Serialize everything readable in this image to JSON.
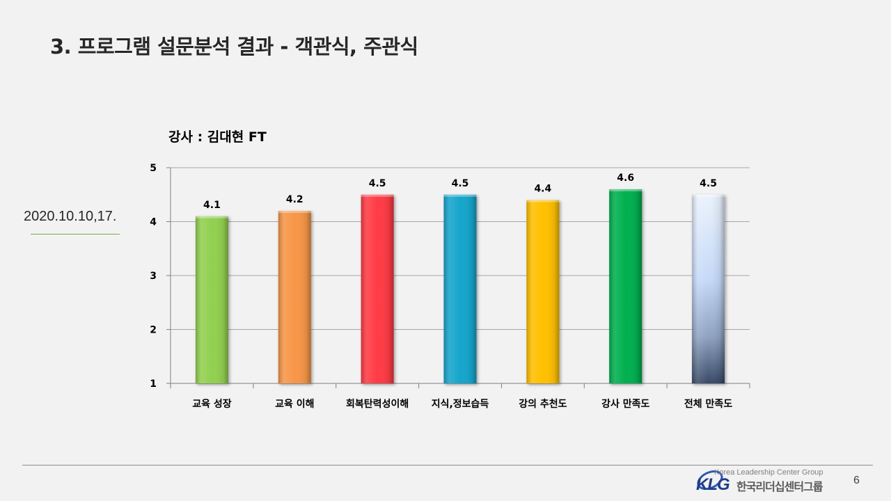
{
  "slide": {
    "title": "3. 프로그램 설문분석 결과 - 객관식, 주관식",
    "date": "2020.10.10,17.",
    "page_number": "6"
  },
  "logo": {
    "tagline": "Korea Leadership Center Group",
    "mark": "KLG",
    "name": "한국리더십센터그룹"
  },
  "chart_data": {
    "type": "bar",
    "title": "강사 : 김대현 FT",
    "xlabel": "",
    "ylabel": "",
    "ylim": [
      1,
      5
    ],
    "yticks": [
      "1",
      "2",
      "3",
      "4",
      "5"
    ],
    "grid": true,
    "legend": "none",
    "categories": [
      "교육 성장",
      "교육 이해",
      "회복탄력성이해",
      "지식,정보습득",
      "강의 추천도",
      "강사 만족도",
      "전체 만족도"
    ],
    "values": [
      4.1,
      4.2,
      4.5,
      4.5,
      4.4,
      4.6,
      4.5
    ],
    "data_labels": [
      "4.1",
      "4.2",
      "4.5",
      "4.5",
      "4.4",
      "4.6",
      "4.5"
    ],
    "colors": [
      "#92d050",
      "#f79646",
      "#ff3b45",
      "#17a5cc",
      "#ffc000",
      "#00b050",
      "#c5d9f1"
    ]
  }
}
